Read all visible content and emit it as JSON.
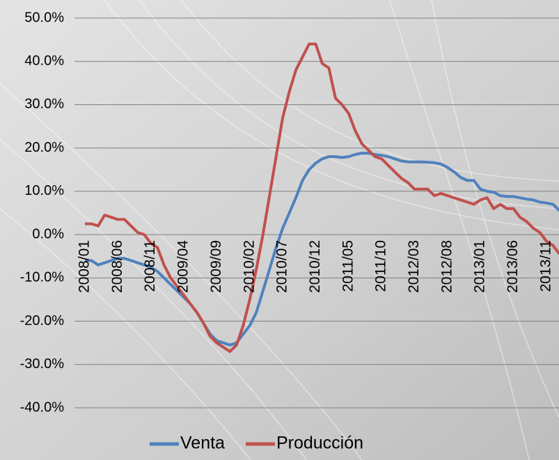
{
  "chart_data": {
    "type": "line",
    "categories": [
      "2008/01",
      null,
      null,
      null,
      null,
      "2008/06",
      null,
      null,
      null,
      null,
      "2008/11",
      null,
      null,
      null,
      null,
      "2009/04",
      null,
      null,
      null,
      null,
      "2009/09",
      null,
      null,
      null,
      null,
      "2010/02",
      null,
      null,
      null,
      null,
      "2010/07",
      null,
      null,
      null,
      null,
      "2010/12",
      null,
      null,
      null,
      null,
      "2011/05",
      null,
      null,
      null,
      null,
      "2011/10",
      null,
      null,
      null,
      null,
      "2012/03",
      null,
      null,
      null,
      null,
      "2012/08",
      null,
      null,
      null,
      null,
      "2013/01",
      null,
      null,
      null,
      null,
      "2013/06",
      null,
      null,
      null,
      null,
      "2013/11",
      null,
      null
    ],
    "series": [
      {
        "name": "Venta",
        "color": "#4f81bd",
        "values": [
          -6,
          -6,
          -7,
          -6.5,
          -6,
          -5.5,
          -5.5,
          -6,
          -6.5,
          -7,
          -7.5,
          -8.5,
          -10,
          -11.5,
          -13,
          -14.5,
          -16,
          -18,
          -20.5,
          -23,
          -24.5,
          -25,
          -25.5,
          -25,
          -23,
          -21,
          -18,
          -13,
          -8,
          -3,
          1.5,
          5,
          8.5,
          12.5,
          15,
          16.5,
          17.5,
          18,
          18,
          17.8,
          18,
          18.5,
          18.8,
          18.8,
          18.5,
          18.3,
          18,
          17.5,
          17,
          16.8,
          16.8,
          16.8,
          16.7,
          16.6,
          16.3,
          15.5,
          14.5,
          13.2,
          12.5,
          12.5,
          10.5,
          10,
          9.8,
          9,
          8.8,
          8.8,
          8.5,
          8.2,
          8,
          7.5,
          7.3,
          7,
          5.5
        ]
      },
      {
        "name": "Producción",
        "color": "#c0504d",
        "values": [
          2.5,
          2.5,
          2,
          4.5,
          4,
          3.5,
          3.5,
          2,
          0.5,
          0,
          -2,
          -3,
          -7,
          -10,
          -12,
          -14,
          -16,
          -18,
          -20.5,
          -23.5,
          -25,
          -26,
          -27,
          -25.5,
          -21,
          -15,
          -8,
          0,
          9,
          18,
          27,
          33,
          38,
          41,
          44,
          44,
          39.5,
          38.5,
          31.5,
          30,
          28,
          24,
          21,
          19.5,
          18,
          17.5,
          16,
          14.5,
          13,
          12,
          10.5,
          10.5,
          10.5,
          9,
          9.5,
          9,
          8.5,
          8,
          7.5,
          7,
          8,
          8.5,
          6,
          7,
          6,
          6,
          4,
          3,
          1.5,
          0.5,
          -1.5,
          -2.5,
          -4.5
        ]
      }
    ],
    "ylim": [
      -40,
      50
    ],
    "yticks": [
      {
        "value": -40,
        "label": "-40.0%"
      },
      {
        "value": -30,
        "label": "-30.0%"
      },
      {
        "value": -20,
        "label": "-20.0%"
      },
      {
        "value": -10,
        "label": "-10.0%"
      },
      {
        "value": 0,
        "label": "0.0%"
      },
      {
        "value": 10,
        "label": "10.0%"
      },
      {
        "value": 20,
        "label": "20.0%"
      },
      {
        "value": 30,
        "label": "30.0%"
      },
      {
        "value": 40,
        "label": "40.0%"
      },
      {
        "value": 50,
        "label": "50.0%"
      }
    ],
    "grid": true,
    "legend": "bottom"
  }
}
